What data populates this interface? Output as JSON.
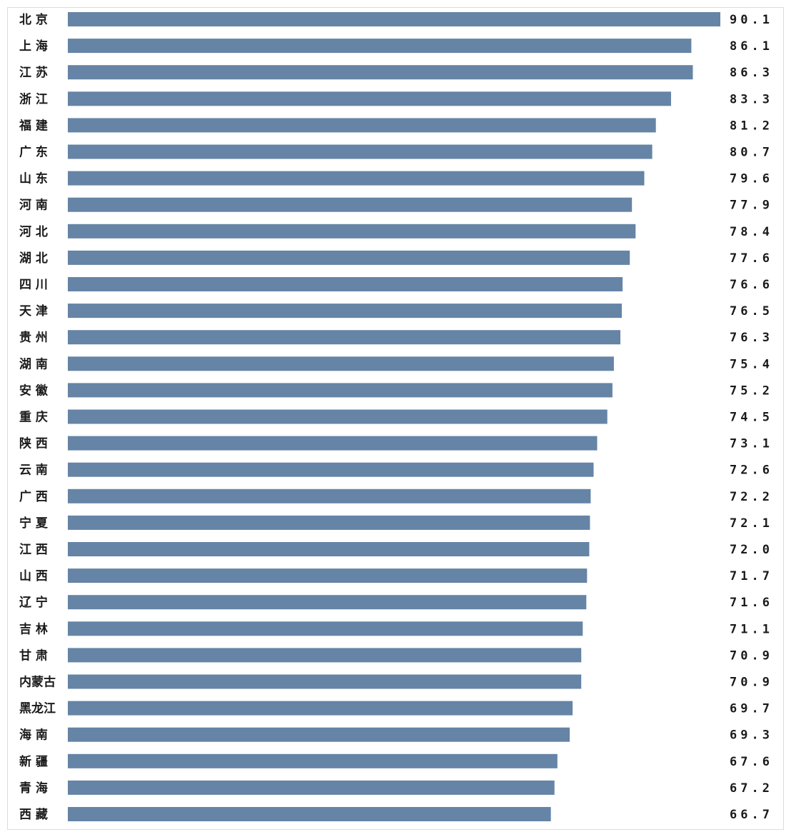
{
  "chart_data": {
    "type": "bar",
    "orientation": "horizontal",
    "categories": [
      "北 京",
      "上 海",
      "江 苏",
      "浙 江",
      "福 建",
      "广 东",
      "山 东",
      "河 南",
      "河 北",
      "湖 北",
      "四 川",
      "天 津",
      "贵 州",
      "湖 南",
      "安 徽",
      "重 庆",
      "陕 西",
      "云 南",
      "广 西",
      "宁 夏",
      "江 西",
      "山 西",
      "辽 宁",
      "吉 林",
      "甘 肃",
      "内蒙古",
      "黑龙江",
      "海 南",
      "新 疆",
      "青 海",
      "西 藏"
    ],
    "values": [
      90.1,
      86.1,
      86.3,
      83.3,
      81.2,
      80.7,
      79.6,
      77.9,
      78.4,
      77.6,
      76.6,
      76.5,
      76.3,
      75.4,
      75.2,
      74.5,
      73.1,
      72.6,
      72.2,
      72.1,
      72.0,
      71.7,
      71.6,
      71.1,
      70.9,
      70.9,
      69.7,
      69.3,
      67.6,
      67.2,
      66.7
    ],
    "value_labels": [
      "90.1",
      "86.1",
      "86.3",
      "83.3",
      "81.2",
      "80.7",
      "79.6",
      "77.9",
      "78.4",
      "77.6",
      "76.6",
      "76.5",
      "76.3",
      "75.4",
      "75.2",
      "74.5",
      "73.1",
      "72.6",
      "72.2",
      "72.1",
      "72.0",
      "71.7",
      "71.6",
      "71.1",
      "70.9",
      "70.9",
      "69.7",
      "69.3",
      "67.6",
      "67.2",
      "66.7"
    ],
    "title": "",
    "xlabel": "",
    "ylabel": "",
    "grid": false,
    "legend": "none",
    "bar_color": "#6584a6"
  }
}
